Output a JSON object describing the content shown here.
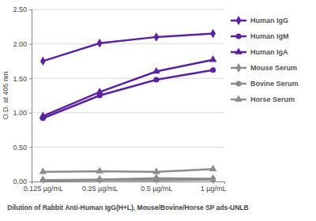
{
  "chart_data": {
    "type": "line",
    "x_label": "Dilution of Rabbit Anti-Human IgG(H+L), Mouse/Bovine/Horse SP ads-UNLB",
    "y_label": "O.D. at 405 nm",
    "categories": [
      "0.125 µg/mL",
      "0.25 µg/mL",
      "0.5 µg/mL",
      "1 µg/mL"
    ],
    "series": [
      {
        "name": "Human IgG",
        "color": "#5a22a0",
        "marker": "diamond",
        "values": [
          1.75,
          2.01,
          2.1,
          2.15
        ]
      },
      {
        "name": "Human IgM",
        "color": "#5a22a0",
        "marker": "circle",
        "values": [
          0.92,
          1.25,
          1.48,
          1.62
        ]
      },
      {
        "name": "Human IgA",
        "color": "#5a22a0",
        "marker": "triangle",
        "values": [
          0.95,
          1.3,
          1.6,
          1.77
        ]
      },
      {
        "name": "Mouse Serum",
        "color": "#8c8c8c",
        "marker": "diamond",
        "values": [
          0.02,
          0.03,
          0.05,
          0.04
        ]
      },
      {
        "name": "Bovine Serum",
        "color": "#8c8c8c",
        "marker": "circle",
        "values": [
          0.01,
          0.02,
          0.02,
          0.03
        ]
      },
      {
        "name": "Horse Serum",
        "color": "#8c8c8c",
        "marker": "triangle",
        "values": [
          0.14,
          0.15,
          0.14,
          0.18
        ]
      }
    ],
    "ylim": [
      0,
      2.5
    ],
    "yticks": [
      {
        "value": 0,
        "label": "0.00"
      },
      {
        "value": 0.5,
        "label": "0.50"
      },
      {
        "value": 1,
        "label": "1.00"
      },
      {
        "value": 1.5,
        "label": "1.50"
      },
      {
        "value": 2,
        "label": "2.00"
      },
      {
        "value": 2.5,
        "label": "2.50"
      }
    ],
    "grid": true,
    "legend": "right"
  }
}
